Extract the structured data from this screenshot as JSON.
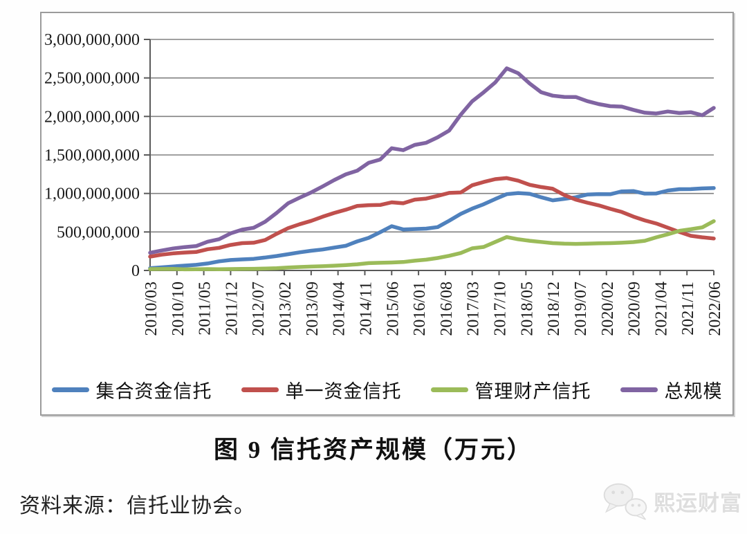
{
  "page": {
    "title": "图 9  信托资产规模（万元）",
    "source_note": "资料来源：信托业协会。",
    "watermark": "熙运财富"
  },
  "chart_data": {
    "type": "line",
    "title": "图 9  信托资产规模（万元）",
    "unit": "万元",
    "xlabel": "",
    "ylabel": "",
    "ylim": [
      0,
      3000000000
    ],
    "y_tick_step": 500000000,
    "grid": "horizontal",
    "legend_position": "bottom",
    "x_label_rotation": -90,
    "y_ticks": [
      "3,000,000,000",
      "2,500,000,000",
      "2,000,000,000",
      "1,500,000,000",
      "1,000,000,000",
      "500,000,000",
      "0"
    ],
    "x_ticks": [
      "2010/03",
      "2010/10",
      "2011/05",
      "2011/12",
      "2012/07",
      "2013/02",
      "2013/09",
      "2014/04",
      "2014/11",
      "2015/06",
      "2016/01",
      "2016/08",
      "2017/03",
      "2017/10",
      "2018/05",
      "2018/12",
      "2019/07",
      "2020/02",
      "2020/09",
      "2021/04",
      "2021/11",
      "2022/06"
    ],
    "x": [
      "2010/03",
      "2010/06",
      "2010/09",
      "2010/12",
      "2011/03",
      "2011/06",
      "2011/09",
      "2011/12",
      "2012/03",
      "2012/06",
      "2012/09",
      "2012/12",
      "2013/03",
      "2013/06",
      "2013/09",
      "2013/12",
      "2014/03",
      "2014/06",
      "2014/09",
      "2014/12",
      "2015/03",
      "2015/06",
      "2015/09",
      "2015/12",
      "2016/03",
      "2016/06",
      "2016/09",
      "2016/12",
      "2017/03",
      "2017/06",
      "2017/09",
      "2017/12",
      "2018/03",
      "2018/06",
      "2018/09",
      "2018/12",
      "2019/03",
      "2019/06",
      "2019/09",
      "2019/12",
      "2020/03",
      "2020/06",
      "2020/09",
      "2020/12",
      "2021/03",
      "2021/06",
      "2021/09",
      "2021/12",
      "2022/03",
      "2022/06"
    ],
    "series": [
      {
        "name": "集合资金信托",
        "color": "#4f81bd",
        "values": [
          30000000,
          40000000,
          52000000,
          63000000,
          73000000,
          91000000,
          119000000,
          136000000,
          144000000,
          151000000,
          168000000,
          188000000,
          211000000,
          235000000,
          256000000,
          272000000,
          297000000,
          320000000,
          377000000,
          423000000,
          497000000,
          575000000,
          533000000,
          538000000,
          543000000,
          563000000,
          646000000,
          734000000,
          803000000,
          860000000,
          928000000,
          991000000,
          1005000000,
          995000000,
          950000000,
          911000000,
          930000000,
          950000000,
          985000000,
          992000000,
          990000000,
          1027000000,
          1031000000,
          998000000,
          1000000000,
          1037000000,
          1055000000,
          1056000000,
          1065000000,
          1070000000
        ]
      },
      {
        "name": "单一资金信托",
        "color": "#c0504d",
        "values": [
          180000000,
          205000000,
          222000000,
          233000000,
          240000000,
          276000000,
          294000000,
          331000000,
          355000000,
          360000000,
          395000000,
          476000000,
          550000000,
          600000000,
          644000000,
          698000000,
          746000000,
          789000000,
          837000000,
          848000000,
          851000000,
          885000000,
          872000000,
          920000000,
          933000000,
          968000000,
          1007000000,
          1012000000,
          1107000000,
          1149000000,
          1186000000,
          1200000000,
          1166000000,
          1112000000,
          1083000000,
          1061000000,
          980000000,
          920000000,
          880000000,
          845000000,
          800000000,
          760000000,
          700000000,
          650000000,
          610000000,
          555000000,
          500000000,
          450000000,
          430000000,
          415000000
        ]
      },
      {
        "name": "管理财产信托",
        "color": "#9bbb59",
        "values": [
          18000000,
          19000000,
          20000000,
          14000000,
          16000000,
          18000000,
          15000000,
          18000000,
          20000000,
          22000000,
          25000000,
          30000000,
          38000000,
          45000000,
          50000000,
          55000000,
          62000000,
          70000000,
          80000000,
          95000000,
          100000000,
          103000000,
          110000000,
          127000000,
          140000000,
          162000000,
          190000000,
          226000000,
          287000000,
          305000000,
          370000000,
          434000000,
          405000000,
          385000000,
          370000000,
          355000000,
          348000000,
          345000000,
          348000000,
          352000000,
          355000000,
          360000000,
          368000000,
          385000000,
          430000000,
          470000000,
          515000000,
          535000000,
          560000000,
          640000000
        ]
      },
      {
        "name": "总规模",
        "color": "#8064a2",
        "values": [
          230000000,
          259000000,
          286000000,
          304000000,
          316000000,
          374000000,
          406000000,
          481000000,
          530000000,
          554000000,
          632000000,
          747000000,
          873000000,
          945000000,
          1013000000,
          1091000000,
          1173000000,
          1248000000,
          1295000000,
          1398000000,
          1441000000,
          1587000000,
          1562000000,
          1630000000,
          1658000000,
          1729000000,
          1817000000,
          2022000000,
          2197000000,
          2314000000,
          2441000000,
          2625000000,
          2561000000,
          2427000000,
          2314000000,
          2270000000,
          2254000000,
          2253000000,
          2199000000,
          2160000000,
          2133000000,
          2128000000,
          2086000000,
          2049000000,
          2038000000,
          2064000000,
          2044000000,
          2055000000,
          2016000000,
          2111000000
        ]
      }
    ]
  }
}
